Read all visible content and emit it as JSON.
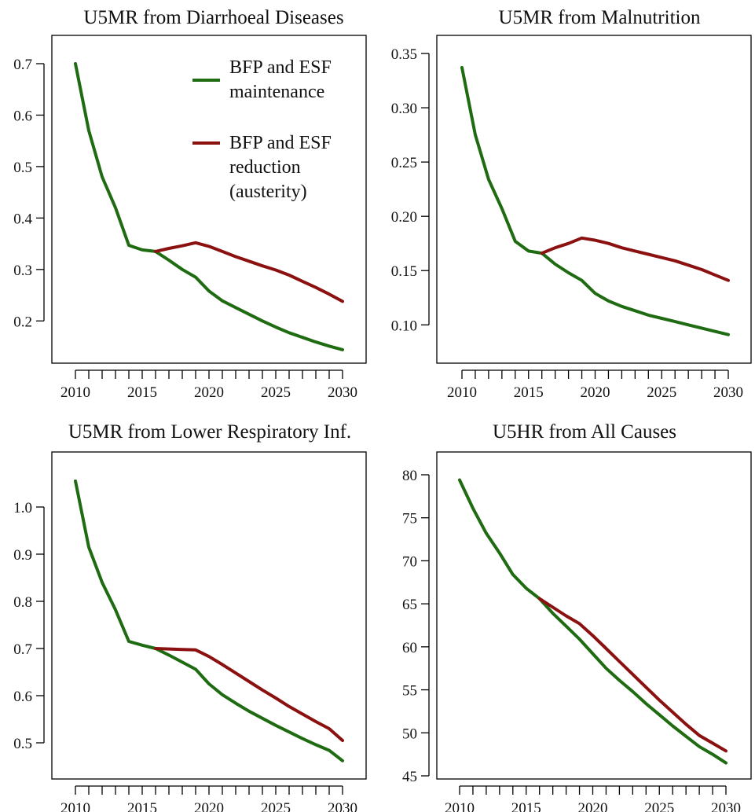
{
  "chart_data": [
    {
      "type": "line",
      "title": "U5MR from Diarrhoeal Diseases",
      "xlabel": "",
      "ylabel": "",
      "xlim": [
        2010,
        2030
      ],
      "ylim": [
        0.15,
        0.7
      ],
      "xticks": [
        "2010",
        "2015",
        "2020",
        "2025",
        "2030"
      ],
      "yticks": [
        "0.2",
        "0.3",
        "0.4",
        "0.5",
        "0.6",
        "0.7"
      ],
      "ytick_values": [
        0.2,
        0.3,
        0.4,
        0.5,
        0.6,
        0.7
      ],
      "grid": false,
      "legend": "top-right",
      "x": [
        2010,
        2011,
        2012,
        2013,
        2014,
        2015,
        2016,
        2017,
        2018,
        2019,
        2020,
        2021,
        2022,
        2023,
        2024,
        2025,
        2026,
        2027,
        2028,
        2029,
        2030
      ],
      "series": [
        {
          "name": "BFP and ESF maintenance",
          "color": "#1e6b12",
          "x": [
            2010,
            2011,
            2012,
            2013,
            2014,
            2015,
            2016,
            2017,
            2018,
            2019,
            2020,
            2021,
            2022,
            2023,
            2024,
            2025,
            2026,
            2027,
            2028,
            2029,
            2030
          ],
          "values": [
            0.7,
            0.57,
            0.48,
            0.42,
            0.347,
            0.338,
            0.335,
            0.318,
            0.3,
            0.285,
            0.258,
            0.239,
            0.226,
            0.213,
            0.2,
            0.188,
            0.177,
            0.168,
            0.159,
            0.151,
            0.144
          ]
        },
        {
          "name": "BFP and ESF reduction (austerity)",
          "color": "#8b1010",
          "x": [
            2016,
            2017,
            2018,
            2019,
            2020,
            2021,
            2022,
            2023,
            2024,
            2025,
            2026,
            2027,
            2028,
            2029,
            2030
          ],
          "values": [
            0.335,
            0.341,
            0.346,
            0.352,
            0.345,
            0.335,
            0.325,
            0.316,
            0.307,
            0.299,
            0.289,
            0.277,
            0.265,
            0.252,
            0.238
          ]
        }
      ]
    },
    {
      "type": "line",
      "title": "U5MR from Malnutrition",
      "xlabel": "",
      "ylabel": "",
      "xlim": [
        2010,
        2030
      ],
      "ylim": [
        0.085,
        0.337
      ],
      "xticks": [
        "2010",
        "2015",
        "2020",
        "2025",
        "2030"
      ],
      "yticks": [
        "0.10",
        "0.15",
        "0.20",
        "0.25",
        "0.30",
        "0.35"
      ],
      "ytick_values": [
        0.1,
        0.15,
        0.2,
        0.25,
        0.3,
        0.35
      ],
      "grid": false,
      "legend": "",
      "x": [
        2010,
        2011,
        2012,
        2013,
        2014,
        2015,
        2016,
        2017,
        2018,
        2019,
        2020,
        2021,
        2022,
        2023,
        2024,
        2025,
        2026,
        2027,
        2028,
        2029,
        2030
      ],
      "series": [
        {
          "name": "BFP and ESF maintenance",
          "color": "#1e6b12",
          "x": [
            2010,
            2011,
            2012,
            2013,
            2014,
            2015,
            2016,
            2017,
            2018,
            2019,
            2020,
            2021,
            2022,
            2023,
            2024,
            2025,
            2026,
            2027,
            2028,
            2029,
            2030
          ],
          "values": [
            0.337,
            0.275,
            0.234,
            0.207,
            0.177,
            0.168,
            0.166,
            0.156,
            0.148,
            0.141,
            0.129,
            0.122,
            0.117,
            0.113,
            0.109,
            0.106,
            0.103,
            0.1,
            0.097,
            0.094,
            0.091
          ]
        },
        {
          "name": "BFP and ESF reduction (austerity)",
          "color": "#8b1010",
          "x": [
            2016,
            2017,
            2018,
            2019,
            2020,
            2021,
            2022,
            2023,
            2024,
            2025,
            2026,
            2027,
            2028,
            2029,
            2030
          ],
          "values": [
            0.166,
            0.171,
            0.175,
            0.18,
            0.178,
            0.175,
            0.171,
            0.168,
            0.165,
            0.162,
            0.159,
            0.155,
            0.151,
            0.146,
            0.141
          ]
        }
      ]
    },
    {
      "type": "line",
      "title": "U5MR from Lower Respiratory Inf.",
      "xlabel": "",
      "ylabel": "",
      "xlim": [
        2010,
        2030
      ],
      "ylim": [
        0.46,
        1.055
      ],
      "xticks": [
        "2010",
        "2015",
        "2020",
        "2025",
        "2030"
      ],
      "yticks": [
        "0.5",
        "0.6",
        "0.7",
        "0.8",
        "0.9",
        "1.0"
      ],
      "ytick_values": [
        0.5,
        0.6,
        0.7,
        0.8,
        0.9,
        1.0
      ],
      "grid": false,
      "legend": "",
      "x": [
        2010,
        2011,
        2012,
        2013,
        2014,
        2015,
        2016,
        2017,
        2018,
        2019,
        2020,
        2021,
        2022,
        2023,
        2024,
        2025,
        2026,
        2027,
        2028,
        2029,
        2030
      ],
      "series": [
        {
          "name": "BFP and ESF maintenance",
          "color": "#1e6b12",
          "x": [
            2010,
            2011,
            2012,
            2013,
            2014,
            2015,
            2016,
            2017,
            2018,
            2019,
            2020,
            2021,
            2022,
            2023,
            2024,
            2025,
            2026,
            2027,
            2028,
            2029,
            2030
          ],
          "values": [
            1.055,
            0.915,
            0.84,
            0.782,
            0.715,
            0.707,
            0.7,
            0.686,
            0.671,
            0.656,
            0.625,
            0.602,
            0.584,
            0.567,
            0.552,
            0.537,
            0.523,
            0.509,
            0.496,
            0.484,
            0.462
          ]
        },
        {
          "name": "BFP and ESF reduction (austerity)",
          "color": "#8b1010",
          "x": [
            2016,
            2017,
            2018,
            2019,
            2020,
            2021,
            2022,
            2023,
            2024,
            2025,
            2026,
            2027,
            2028,
            2029,
            2030
          ],
          "values": [
            0.7,
            0.699,
            0.698,
            0.697,
            0.683,
            0.666,
            0.648,
            0.63,
            0.612,
            0.595,
            0.577,
            0.561,
            0.545,
            0.53,
            0.505
          ]
        }
      ]
    },
    {
      "type": "line",
      "title": "U5HR from All Causes",
      "xlabel": "",
      "ylabel": "",
      "xlim": [
        2010,
        2030
      ],
      "ylim": [
        45,
        80
      ],
      "xticks": [
        "2010",
        "2015",
        "2020",
        "2025",
        "2030"
      ],
      "yticks": [
        "45",
        "50",
        "55",
        "60",
        "65",
        "70",
        "75",
        "80"
      ],
      "ytick_values": [
        45,
        50,
        55,
        60,
        65,
        70,
        75,
        80
      ],
      "grid": false,
      "legend": "",
      "x": [
        2010,
        2011,
        2012,
        2013,
        2014,
        2015,
        2016,
        2017,
        2018,
        2019,
        2020,
        2021,
        2022,
        2023,
        2024,
        2025,
        2026,
        2027,
        2028,
        2029,
        2030
      ],
      "series": [
        {
          "name": "BFP and ESF maintenance",
          "color": "#1e6b12",
          "x": [
            2010,
            2011,
            2012,
            2013,
            2014,
            2015,
            2016,
            2017,
            2018,
            2019,
            2020,
            2021,
            2022,
            2023,
            2024,
            2025,
            2026,
            2027,
            2028,
            2029,
            2030
          ],
          "values": [
            79.4,
            76.1,
            73.2,
            70.9,
            68.4,
            66.8,
            65.6,
            63.9,
            62.4,
            60.9,
            59.2,
            57.5,
            56.1,
            54.8,
            53.4,
            52.1,
            50.8,
            49.6,
            48.4,
            47.5,
            46.5
          ]
        },
        {
          "name": "BFP and ESF reduction (austerity)",
          "color": "#8b1010",
          "x": [
            2016,
            2017,
            2018,
            2019,
            2020,
            2021,
            2022,
            2023,
            2024,
            2025,
            2026,
            2027,
            2028,
            2029,
            2030
          ],
          "values": [
            65.6,
            64.6,
            63.6,
            62.7,
            61.3,
            59.8,
            58.3,
            56.8,
            55.3,
            53.8,
            52.4,
            51.0,
            49.7,
            48.8,
            47.9
          ]
        }
      ]
    }
  ],
  "legend": {
    "entries": [
      {
        "line1": "BFP and ESF",
        "line2": "maintenance",
        "line3": "",
        "color": "#1e6b12"
      },
      {
        "line1": "BFP and ESF",
        "line2": "reduction",
        "line3": "(austerity)",
        "color": "#8b1010"
      }
    ]
  }
}
